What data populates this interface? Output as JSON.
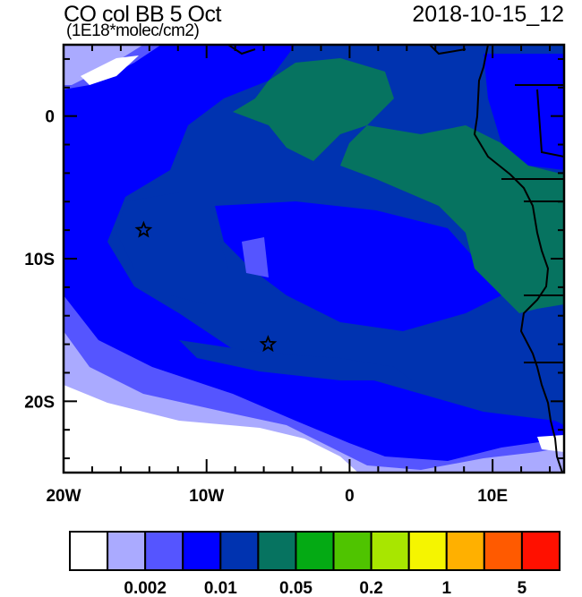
{
  "title": "CO col BB 5 Oct",
  "units": "(1E18*molec/cm2)",
  "datetime": "2018-10-15_12",
  "map": {
    "lon_range": [
      -20,
      15
    ],
    "lat_range": [
      -25,
      5
    ],
    "lon_major": [
      -20,
      -10,
      0,
      10
    ],
    "lon_labels": [
      "20W",
      "10W",
      "0",
      "10E"
    ],
    "lat_major": [
      0,
      -10,
      -20
    ],
    "lat_labels": [
      "0",
      "10S",
      "20S"
    ],
    "markers": [
      {
        "lon": -14.4,
        "lat": -8.0,
        "symbol": "star"
      },
      {
        "lon": -5.7,
        "lat": -16.0,
        "symbol": "star"
      }
    ]
  },
  "colorbar": {
    "colors": [
      "#ffffff",
      "#aaaaff",
      "#5555ff",
      "#0000ff",
      "#0033b0",
      "#067360",
      "#04aa14",
      "#4fc400",
      "#a8e600",
      "#f5f500",
      "#ffb000",
      "#ff5a00",
      "#ff1000"
    ],
    "labels": [
      {
        "after_box": 2,
        "text": "0.002"
      },
      {
        "after_box": 4,
        "text": "0.01"
      },
      {
        "after_box": 6,
        "text": "0.05"
      },
      {
        "after_box": 8,
        "text": "0.2"
      },
      {
        "after_box": 10,
        "text": "1"
      },
      {
        "after_box": 12,
        "text": "5"
      }
    ]
  }
}
